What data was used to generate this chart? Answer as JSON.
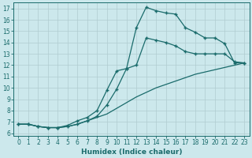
{
  "xlabel": "Humidex (Indice chaleur)",
  "bg_color": "#cce8ec",
  "grid_color": "#b0ccd0",
  "line_color": "#1a6b6b",
  "xlim": [
    -0.5,
    23.5
  ],
  "ylim": [
    5.8,
    17.5
  ],
  "yticks": [
    6,
    7,
    8,
    9,
    10,
    11,
    12,
    13,
    14,
    15,
    16,
    17
  ],
  "xticks": [
    0,
    1,
    2,
    3,
    4,
    5,
    6,
    7,
    8,
    9,
    10,
    11,
    12,
    13,
    14,
    15,
    16,
    17,
    18,
    19,
    20,
    21,
    22,
    23
  ],
  "line1_x": [
    0,
    1,
    2,
    3,
    4,
    5,
    6,
    7,
    8,
    9,
    10,
    11,
    12,
    13,
    14,
    15,
    16,
    17,
    18,
    19,
    20,
    21,
    22,
    23
  ],
  "line1_y": [
    6.8,
    6.8,
    6.6,
    6.5,
    6.5,
    6.6,
    6.8,
    7.1,
    7.4,
    7.7,
    8.2,
    8.7,
    9.2,
    9.6,
    10.0,
    10.3,
    10.6,
    10.9,
    11.2,
    11.4,
    11.6,
    11.8,
    12.0,
    12.2
  ],
  "line2_x": [
    0,
    1,
    2,
    3,
    4,
    5,
    6,
    7,
    8,
    9,
    10,
    11,
    12,
    13,
    14,
    15,
    16,
    17,
    18,
    19,
    20,
    21,
    22,
    23
  ],
  "line2_y": [
    6.8,
    6.8,
    6.6,
    6.5,
    6.5,
    6.7,
    7.1,
    7.4,
    8.0,
    9.8,
    11.5,
    11.7,
    12.0,
    14.4,
    14.2,
    14.0,
    13.7,
    13.2,
    13.0,
    13.0,
    13.0,
    13.0,
    12.3,
    12.2
  ],
  "line3_x": [
    0,
    1,
    2,
    3,
    4,
    5,
    6,
    7,
    8,
    9,
    10,
    11,
    12,
    13,
    14,
    15,
    16,
    17,
    18,
    19,
    20,
    21,
    22,
    23
  ],
  "line3_y": [
    6.8,
    6.8,
    6.6,
    6.5,
    6.5,
    6.6,
    6.8,
    7.1,
    7.5,
    8.5,
    9.9,
    11.7,
    15.3,
    17.1,
    16.8,
    16.6,
    16.5,
    15.3,
    14.9,
    14.4,
    14.4,
    13.9,
    12.2,
    12.2
  ]
}
